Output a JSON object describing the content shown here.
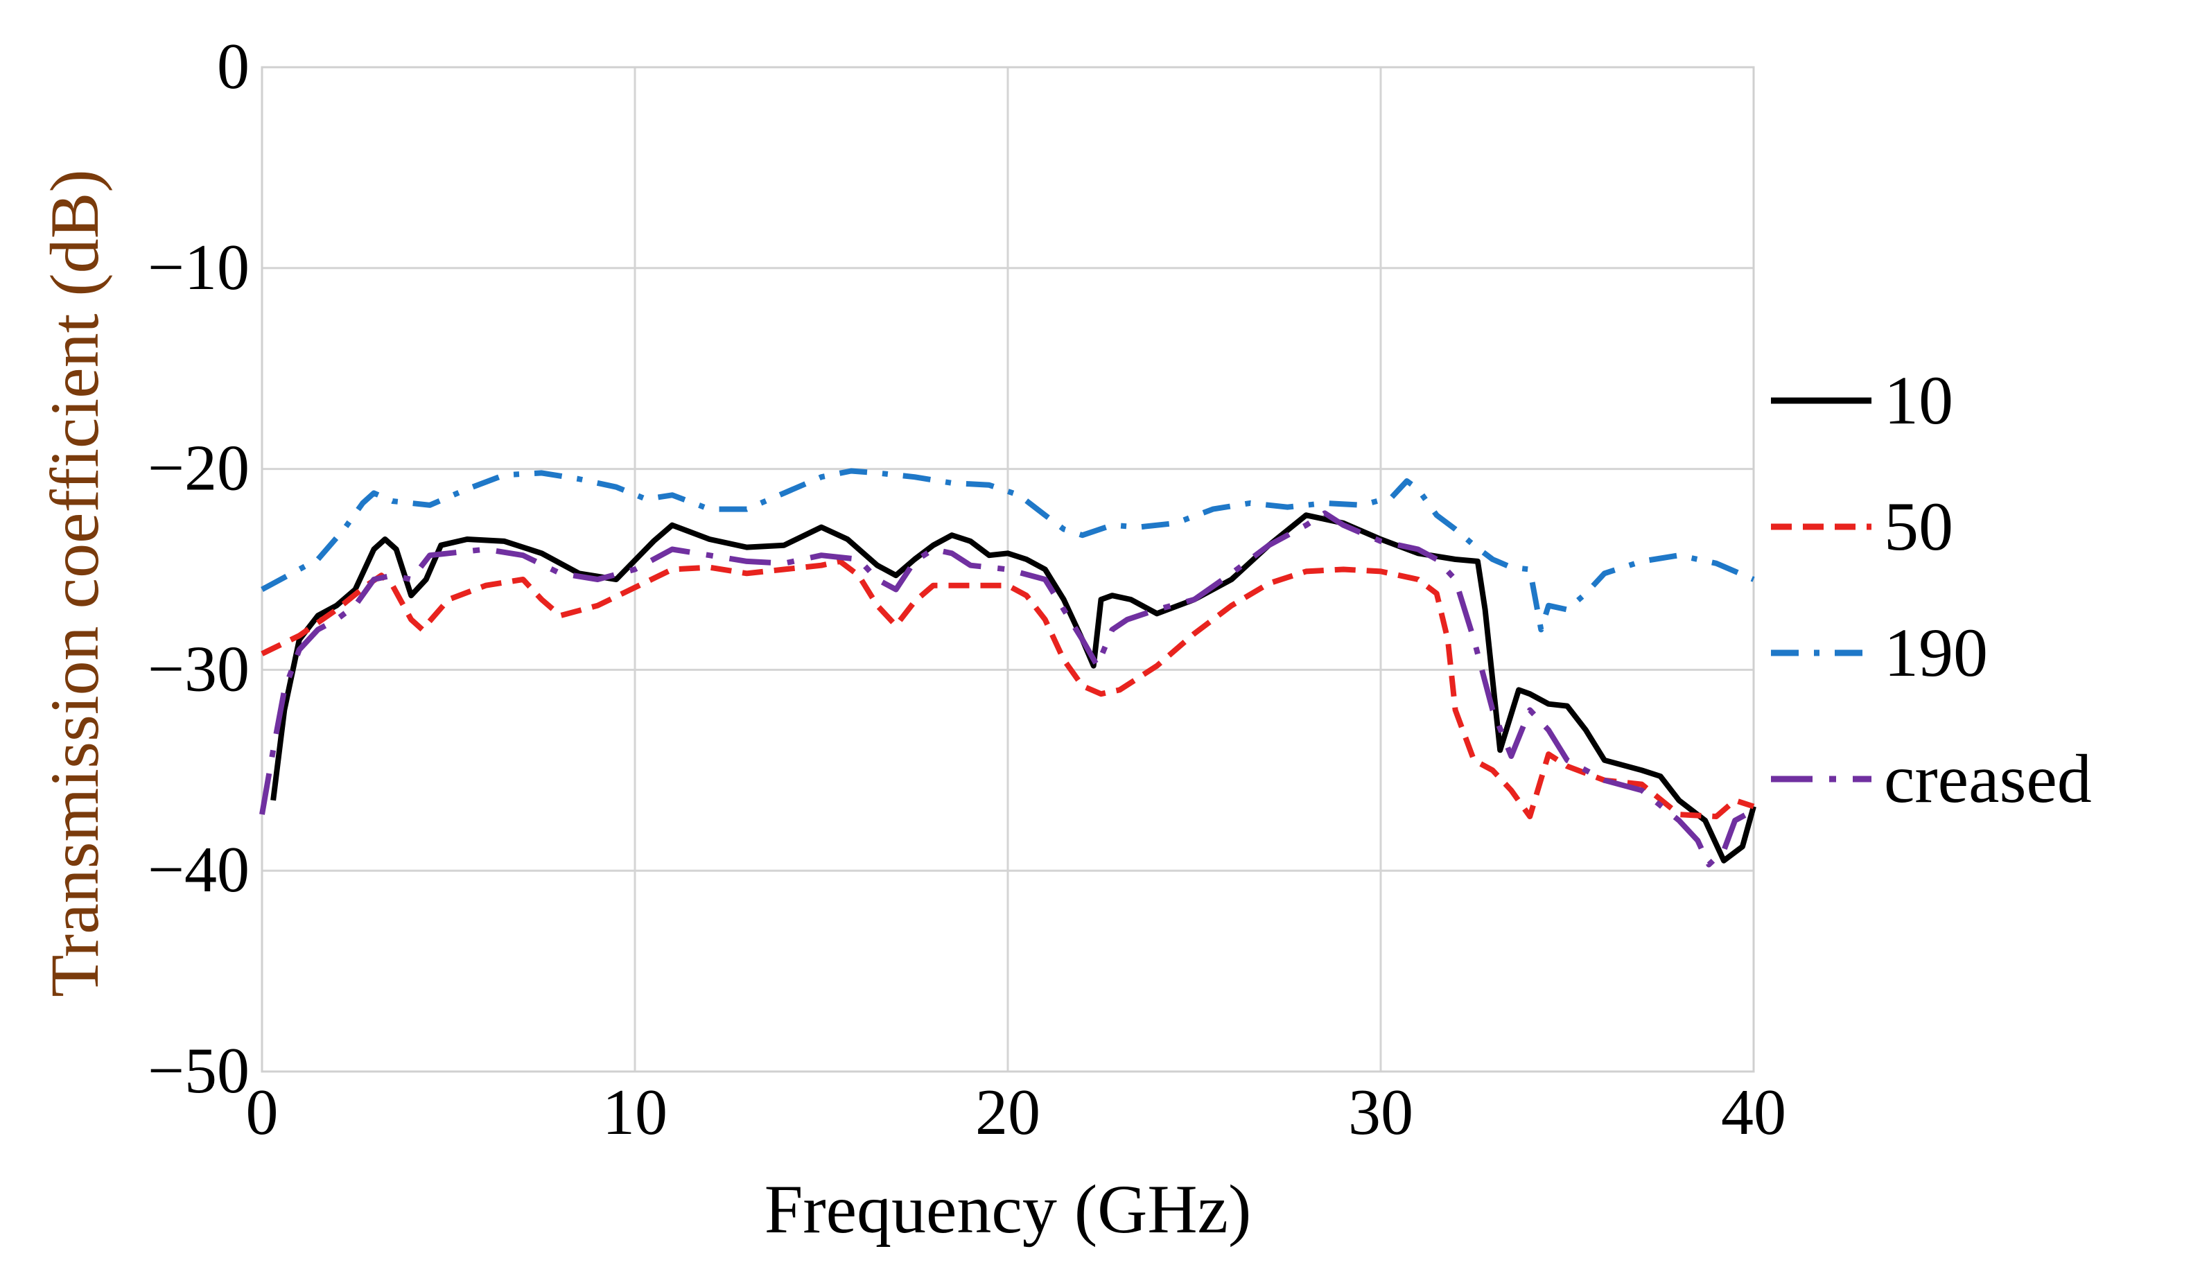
{
  "chart_data": {
    "type": "line",
    "title": "",
    "xlabel": "Frequency (GHz)",
    "ylabel": "Transmission coefficient (dB)",
    "xlim": [
      0,
      40
    ],
    "ylim": [
      -50,
      0
    ],
    "xticks": [
      0,
      10,
      20,
      30,
      40
    ],
    "yticks": [
      0,
      -10,
      -20,
      -30,
      -40,
      -50
    ],
    "xtick_labels": [
      "0",
      "10",
      "20",
      "30",
      "40"
    ],
    "ytick_labels": [
      "0",
      "−10",
      "−20",
      "−30",
      "−40",
      "−50"
    ],
    "grid": true,
    "legend_position": "right",
    "series": [
      {
        "name": "10",
        "color": "#000000",
        "style": "solid",
        "x": [
          0.3,
          0.6,
          1.0,
          1.5,
          2.0,
          2.5,
          3.0,
          3.3,
          3.6,
          4.0,
          4.4,
          4.8,
          5.5,
          6.5,
          7.5,
          8.5,
          9.5,
          10.5,
          11.0,
          12.0,
          13.0,
          14.0,
          15.0,
          15.7,
          16.5,
          17.0,
          17.5,
          18.0,
          18.5,
          19.0,
          19.5,
          20.0,
          20.5,
          21.0,
          21.5,
          22.0,
          22.3,
          22.5,
          22.8,
          23.3,
          24.0,
          25.0,
          26.0,
          27.0,
          28.0,
          29.0,
          30.0,
          31.0,
          32.0,
          32.6,
          32.8,
          33.2,
          33.7,
          34.0,
          34.5,
          35.0,
          35.5,
          36.0,
          37.0,
          37.5,
          38.0,
          38.7,
          39.2,
          39.7,
          40.0
        ],
        "y": [
          -36.5,
          -32.0,
          -28.5,
          -27.3,
          -26.8,
          -26.0,
          -24.0,
          -23.5,
          -24.0,
          -26.3,
          -25.5,
          -23.8,
          -23.5,
          -23.6,
          -24.2,
          -25.2,
          -25.5,
          -23.6,
          -22.8,
          -23.5,
          -23.9,
          -23.8,
          -22.9,
          -23.5,
          -24.8,
          -25.3,
          -24.5,
          -23.8,
          -23.3,
          -23.6,
          -24.3,
          -24.2,
          -24.5,
          -25.0,
          -26.5,
          -28.5,
          -29.8,
          -26.5,
          -26.3,
          -26.5,
          -27.2,
          -26.5,
          -25.5,
          -23.8,
          -22.3,
          -22.7,
          -23.5,
          -24.2,
          -24.5,
          -24.6,
          -27.0,
          -34.0,
          -31.0,
          -31.2,
          -31.7,
          -31.8,
          -33.0,
          -34.5,
          -35.0,
          -35.3,
          -36.5,
          -37.5,
          -39.5,
          -38.8,
          -36.8
        ]
      },
      {
        "name": "50",
        "color": "#e8231e",
        "style": "dashed",
        "x": [
          0.0,
          1.0,
          2.0,
          2.8,
          3.2,
          3.5,
          4.0,
          4.3,
          5.0,
          6.0,
          7.0,
          7.5,
          8.0,
          9.0,
          10.0,
          11.0,
          12.0,
          13.0,
          14.0,
          15.0,
          15.5,
          16.0,
          16.5,
          17.0,
          17.5,
          18.0,
          19.0,
          20.0,
          20.5,
          21.0,
          21.5,
          22.0,
          22.5,
          23.0,
          24.0,
          25.0,
          26.0,
          27.0,
          28.0,
          29.0,
          30.0,
          31.0,
          31.5,
          31.8,
          32.0,
          32.5,
          33.0,
          33.5,
          34.0,
          34.5,
          35.0,
          36.0,
          37.0,
          38.0,
          39.0,
          39.5,
          40.0
        ],
        "y": [
          -29.2,
          -28.3,
          -27.0,
          -25.8,
          -25.3,
          -25.8,
          -27.5,
          -28.0,
          -26.5,
          -25.8,
          -25.5,
          -26.5,
          -27.3,
          -26.8,
          -25.9,
          -25.0,
          -24.9,
          -25.2,
          -25.0,
          -24.8,
          -24.6,
          -25.3,
          -26.8,
          -27.8,
          -26.6,
          -25.8,
          -25.8,
          -25.8,
          -26.3,
          -27.5,
          -29.5,
          -30.8,
          -31.2,
          -31.0,
          -29.8,
          -28.2,
          -26.8,
          -25.7,
          -25.1,
          -25.0,
          -25.1,
          -25.5,
          -26.2,
          -28.5,
          -32.0,
          -34.5,
          -35.0,
          -36.0,
          -37.3,
          -34.2,
          -34.8,
          -35.5,
          -35.7,
          -37.2,
          -37.3,
          -36.5,
          -36.8
        ]
      },
      {
        "name": "190",
        "color": "#1f78c8",
        "style": "dashdot",
        "x": [
          0.0,
          0.8,
          1.5,
          2.2,
          2.7,
          3.0,
          3.5,
          4.5,
          5.5,
          6.5,
          7.5,
          8.5,
          9.5,
          10.3,
          11.0,
          12.0,
          13.0,
          14.0,
          15.0,
          15.8,
          16.5,
          17.5,
          18.5,
          19.5,
          20.3,
          21.0,
          21.5,
          22.0,
          22.8,
          23.5,
          24.5,
          25.5,
          26.5,
          27.5,
          28.5,
          29.5,
          30.3,
          30.7,
          31.0,
          31.5,
          32.0,
          32.5,
          33.0,
          33.5,
          34.0,
          34.3,
          34.5,
          35.0,
          35.5,
          36.0,
          36.5,
          37.0,
          38.0,
          39.0,
          40.0
        ],
        "y": [
          -26.0,
          -25.2,
          -24.5,
          -23.0,
          -21.7,
          -21.2,
          -21.6,
          -21.8,
          -21.0,
          -20.3,
          -20.2,
          -20.5,
          -20.9,
          -21.5,
          -21.3,
          -22.0,
          -22.0,
          -21.2,
          -20.4,
          -20.1,
          -20.2,
          -20.4,
          -20.7,
          -20.8,
          -21.3,
          -22.3,
          -23.0,
          -23.3,
          -22.8,
          -22.9,
          -22.7,
          -22.0,
          -21.7,
          -21.9,
          -21.7,
          -21.8,
          -21.4,
          -20.6,
          -21.0,
          -22.3,
          -23.0,
          -23.8,
          -24.5,
          -24.9,
          -25.0,
          -28.0,
          -26.8,
          -27.0,
          -26.2,
          -25.2,
          -24.9,
          -24.6,
          -24.3,
          -24.7,
          -25.5
        ]
      },
      {
        "name": "creased",
        "color": "#7030a0",
        "style": "longdash",
        "x": [
          0.0,
          0.3,
          0.6,
          1.0,
          1.5,
          2.0,
          2.5,
          3.0,
          3.5,
          4.0,
          4.5,
          5.0,
          6.0,
          7.0,
          8.0,
          9.0,
          10.0,
          11.0,
          12.0,
          13.0,
          14.0,
          15.0,
          16.0,
          16.5,
          17.0,
          17.5,
          18.0,
          18.5,
          19.0,
          20.0,
          21.0,
          21.5,
          22.0,
          22.4,
          22.8,
          23.2,
          24.0,
          25.0,
          26.0,
          27.0,
          28.0,
          28.5,
          29.0,
          30.0,
          31.0,
          31.5,
          32.0,
          32.5,
          33.0,
          33.5,
          34.0,
          34.5,
          35.0,
          36.0,
          37.0,
          38.0,
          38.5,
          38.8,
          39.2,
          39.5,
          40.0
        ],
        "y": [
          -37.2,
          -34.0,
          -31.0,
          -29.0,
          -28.0,
          -27.5,
          -26.8,
          -25.5,
          -25.3,
          -25.5,
          -24.3,
          -24.2,
          -24.0,
          -24.3,
          -25.2,
          -25.5,
          -25.0,
          -24.0,
          -24.3,
          -24.6,
          -24.7,
          -24.3,
          -24.5,
          -25.5,
          -26.0,
          -24.6,
          -24.0,
          -24.2,
          -24.8,
          -25.0,
          -25.5,
          -27.0,
          -28.5,
          -29.8,
          -28.0,
          -27.5,
          -27.0,
          -26.5,
          -25.2,
          -23.8,
          -22.8,
          -22.2,
          -22.8,
          -23.6,
          -24.0,
          -24.5,
          -25.5,
          -28.5,
          -32.0,
          -34.3,
          -32.0,
          -33.0,
          -34.5,
          -35.5,
          -36.0,
          -37.5,
          -38.5,
          -39.7,
          -39.0,
          -37.5,
          -37.0
        ]
      }
    ]
  }
}
